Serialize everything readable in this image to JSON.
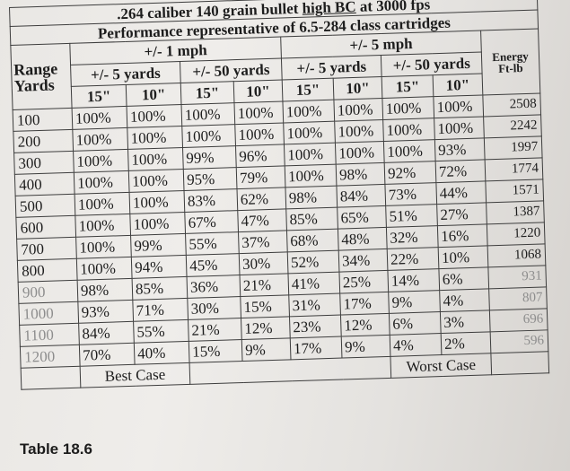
{
  "title": {
    "line1_pre": ".264 caliber 140 grain bullet ",
    "line1_underlined": "high BC",
    "line1_post": " at 3000 fps",
    "line2": "Performance representative of 6.5-284 class cartridges"
  },
  "headers": {
    "range": "Range",
    "yards": "Yards",
    "wind1": "+/- 1 mph",
    "wind5": "+/- 5 mph",
    "yards5": "+/- 5 yards",
    "yards50": "+/- 50 yards",
    "target15": "15\"",
    "target10": "10\"",
    "energy1": "Energy",
    "energy2": "Ft-lb"
  },
  "rows": [
    {
      "range": "100",
      "v": [
        "100%",
        "100%",
        "100%",
        "100%",
        "100%",
        "100%",
        "100%",
        "100%"
      ],
      "energy": "2508",
      "faded": false
    },
    {
      "range": "200",
      "v": [
        "100%",
        "100%",
        "100%",
        "100%",
        "100%",
        "100%",
        "100%",
        "100%"
      ],
      "energy": "2242",
      "faded": false
    },
    {
      "range": "300",
      "v": [
        "100%",
        "100%",
        "99%",
        "96%",
        "100%",
        "100%",
        "100%",
        "93%"
      ],
      "energy": "1997",
      "faded": false
    },
    {
      "range": "400",
      "v": [
        "100%",
        "100%",
        "95%",
        "79%",
        "100%",
        "98%",
        "92%",
        "72%"
      ],
      "energy": "1774",
      "faded": false
    },
    {
      "range": "500",
      "v": [
        "100%",
        "100%",
        "83%",
        "62%",
        "98%",
        "84%",
        "73%",
        "44%"
      ],
      "energy": "1571",
      "faded": false
    },
    {
      "range": "600",
      "v": [
        "100%",
        "100%",
        "67%",
        "47%",
        "85%",
        "65%",
        "51%",
        "27%"
      ],
      "energy": "1387",
      "faded": false
    },
    {
      "range": "700",
      "v": [
        "100%",
        "99%",
        "55%",
        "37%",
        "68%",
        "48%",
        "32%",
        "16%"
      ],
      "energy": "1220",
      "faded": false
    },
    {
      "range": "800",
      "v": [
        "100%",
        "94%",
        "45%",
        "30%",
        "52%",
        "34%",
        "22%",
        "10%"
      ],
      "energy": "1068",
      "faded": false
    },
    {
      "range": "900",
      "v": [
        "98%",
        "85%",
        "36%",
        "21%",
        "41%",
        "25%",
        "14%",
        "6%"
      ],
      "energy": "931",
      "faded": true
    },
    {
      "range": "1000",
      "v": [
        "93%",
        "71%",
        "30%",
        "15%",
        "31%",
        "17%",
        "9%",
        "4%"
      ],
      "energy": "807",
      "faded": true
    },
    {
      "range": "1100",
      "v": [
        "84%",
        "55%",
        "21%",
        "12%",
        "23%",
        "12%",
        "6%",
        "3%"
      ],
      "energy": "696",
      "faded": true
    },
    {
      "range": "1200",
      "v": [
        "70%",
        "40%",
        "15%",
        "9%",
        "17%",
        "9%",
        "4%",
        "2%"
      ],
      "energy": "596",
      "faded": true
    }
  ],
  "best_case": "Best Case",
  "worst_case": "Worst Case",
  "table_label": "Table 18.6"
}
